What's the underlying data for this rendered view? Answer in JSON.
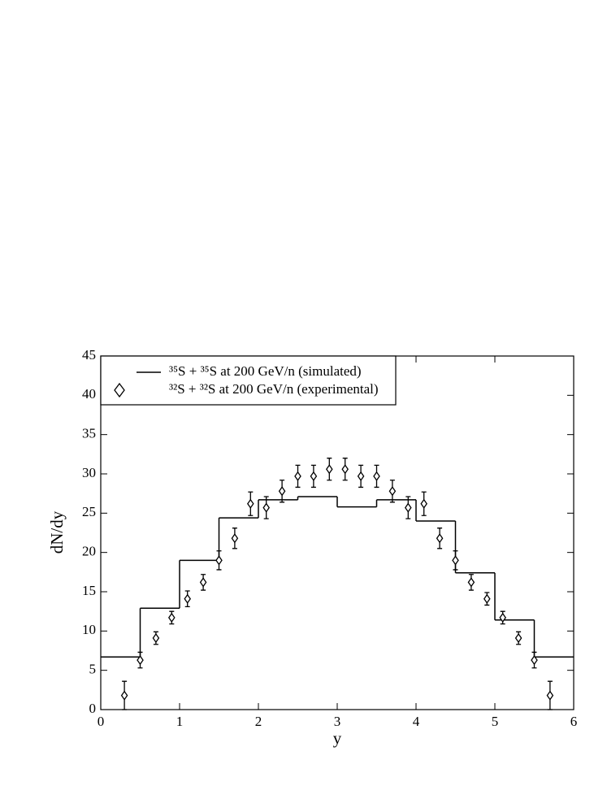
{
  "chart_data": {
    "type": "step-errorbar",
    "x_label": "y",
    "y_label": "dN/dy",
    "xlim": [
      0,
      6
    ],
    "ylim": [
      0,
      45
    ],
    "xticks": [
      0,
      1,
      2,
      3,
      4,
      5,
      6
    ],
    "yticks": [
      0,
      5,
      10,
      15,
      20,
      25,
      30,
      35,
      40,
      45
    ],
    "legend": "upper left",
    "series": [
      {
        "name": "³⁵S + ³⁵S at 200 GeV/n (simulated)",
        "color": "#000000",
        "kind": "step",
        "bins": [
          0,
          0.5,
          1.0,
          1.5,
          2.0,
          2.5,
          3.0,
          3.5,
          4.0,
          4.5,
          5.0,
          5.5,
          6.0
        ],
        "values": [
          6.7,
          12.9,
          19.0,
          24.4,
          26.7,
          27.1,
          25.8,
          26.7,
          24.0,
          17.4,
          11.4,
          6.7
        ]
      },
      {
        "name": "³²S + ³²S at 200 GeV/n (experimental)",
        "color": "#000000",
        "kind": "errorbar",
        "x": [
          0.3,
          0.5,
          0.7,
          0.9,
          1.1,
          1.3,
          1.5,
          1.7,
          1.9,
          2.1,
          2.3,
          2.5,
          2.7,
          2.9,
          3.1,
          3.3,
          3.5,
          3.7,
          3.9,
          4.1,
          4.3,
          4.5,
          4.7,
          4.9,
          5.1,
          5.3,
          5.5,
          5.7
        ],
        "values": [
          1.8,
          6.3,
          9.1,
          11.7,
          14.1,
          16.2,
          19.0,
          21.8,
          26.2,
          25.7,
          27.8,
          29.7,
          29.7,
          30.6,
          30.6,
          29.7,
          29.7,
          27.8,
          25.7,
          26.2,
          21.8,
          19.0,
          16.2,
          14.1,
          11.7,
          9.1,
          6.3,
          1.8
        ],
        "errors": [
          1.8,
          1.0,
          0.8,
          0.8,
          1.0,
          1.0,
          1.2,
          1.3,
          1.5,
          1.4,
          1.4,
          1.4,
          1.4,
          1.4,
          1.4,
          1.4,
          1.4,
          1.4,
          1.4,
          1.5,
          1.3,
          1.2,
          1.0,
          0.8,
          0.8,
          0.8,
          1.0,
          1.8
        ]
      }
    ]
  }
}
